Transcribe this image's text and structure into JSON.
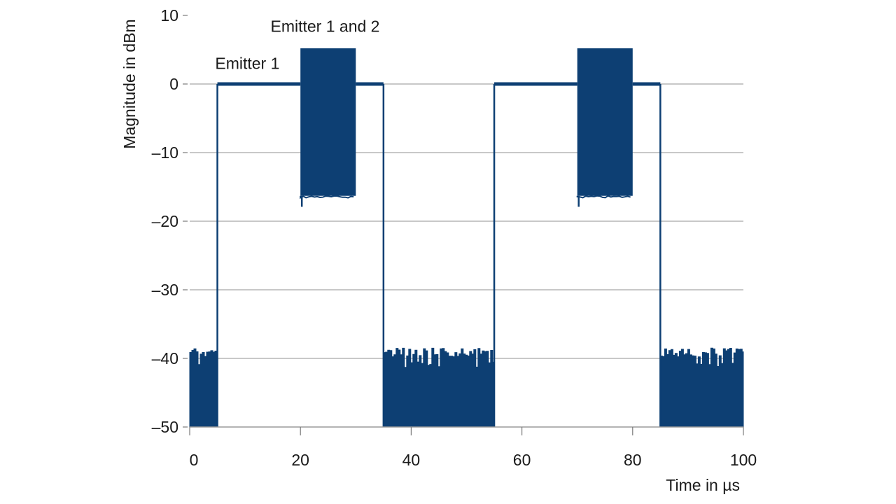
{
  "chart_data": {
    "type": "line",
    "title": "",
    "xlabel": "Time in µs",
    "ylabel": "Magnitude in dBm",
    "xlim": [
      0,
      100
    ],
    "ylim": [
      -50,
      10
    ],
    "xticks": [
      0,
      20,
      40,
      60,
      80,
      100
    ],
    "yticks": [
      10,
      0,
      -10,
      -20,
      -30,
      -40,
      -50
    ],
    "ytick_labels": [
      "10",
      "0",
      "–10",
      "–20",
      "–30",
      "–40",
      "–50"
    ],
    "grid": "horizontal",
    "line_color": "#0d3f73",
    "series": [
      {
        "segments": [
          {
            "kind": "noise",
            "x": [
              0,
              5
            ],
            "top": -38.5,
            "low": -40.5
          },
          {
            "kind": "level",
            "x": [
              5,
              20
            ],
            "y": 0
          },
          {
            "kind": "band",
            "x": [
              20,
              30
            ],
            "top": 5.2,
            "low": -16.3
          },
          {
            "kind": "level",
            "x": [
              30,
              35
            ],
            "y": 0
          },
          {
            "kind": "noise",
            "x": [
              35,
              55
            ],
            "top": -38.5,
            "low": -40.5
          },
          {
            "kind": "level",
            "x": [
              55,
              70
            ],
            "y": 0
          },
          {
            "kind": "band",
            "x": [
              70,
              80
            ],
            "top": 5.2,
            "low": -16.3
          },
          {
            "kind": "level",
            "x": [
              80,
              85
            ],
            "y": 0
          },
          {
            "kind": "noise",
            "x": [
              85,
              100
            ],
            "top": -38.5,
            "low": -40.5
          }
        ]
      }
    ],
    "annotations": [
      {
        "text": "Emitter 1",
        "x": 4.6,
        "y": 2.2
      },
      {
        "text": "Emitter 1 and 2",
        "x": 14.6,
        "y": 7.6
      }
    ]
  }
}
